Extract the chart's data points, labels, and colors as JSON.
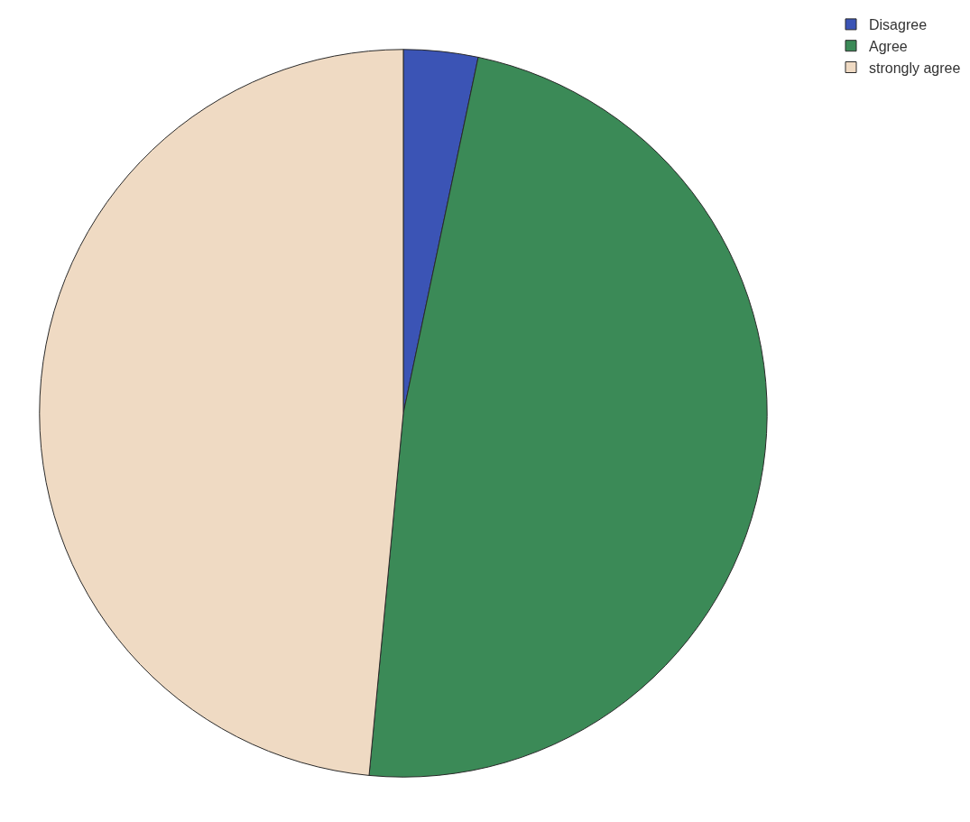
{
  "chart_data": {
    "type": "pie",
    "categories": [
      "Disagree",
      "Agree",
      "strongly agree"
    ],
    "values": [
      3.3,
      48.2,
      48.5
    ],
    "colors": [
      "#3b54b5",
      "#3b8a57",
      "#efdac3"
    ],
    "legend": "top right"
  }
}
